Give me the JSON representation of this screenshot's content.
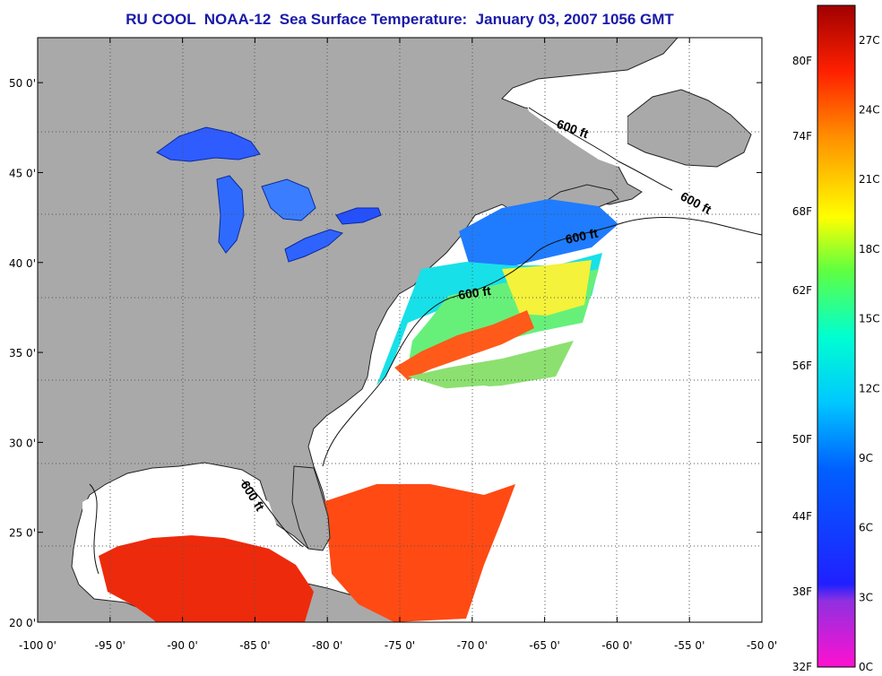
{
  "title": "RU COOL  NOAA-12  Sea Surface Temperature:  January 03, 2007 1056 GMT",
  "map": {
    "lon_range": [
      -100,
      -50
    ],
    "lat_range": [
      20,
      52.5
    ],
    "lon_ticks": [
      "-100 0'",
      "-95 0'",
      "-90 0'",
      "-85 0'",
      "-80 0'",
      "-75 0'",
      "-70 0'",
      "-65 0'",
      "-60 0'",
      "-55 0'",
      "-50 0'"
    ],
    "lat_ticks": [
      "20 0'",
      "25 0'",
      "30 0'",
      "35 0'",
      "40 0'",
      "45 0'",
      "50 0'"
    ],
    "grid": true,
    "land_color": "#a9a9a9",
    "cloud_color": "#ffffff",
    "depth_contour_labels": [
      "600 ft",
      "600 ft",
      "600 ft",
      "600 ft",
      "600 ft"
    ]
  },
  "colorbar": {
    "fahrenheit_labels": [
      "80F",
      "74F",
      "68F",
      "62F",
      "56F",
      "50F",
      "44F",
      "38F",
      "32F"
    ],
    "celsius_labels": [
      "27C",
      "24C",
      "21C",
      "18C",
      "15C",
      "12C",
      "9C",
      "6C",
      "3C",
      "0C"
    ],
    "range_c": [
      0,
      28.5
    ],
    "colors": [
      "#ff10d0",
      "#9030e0",
      "#2020ff",
      "#00a0ff",
      "#00ffff",
      "#40ff80",
      "#ffff00",
      "#ff9000",
      "#ff2000",
      "#a00000"
    ]
  }
}
